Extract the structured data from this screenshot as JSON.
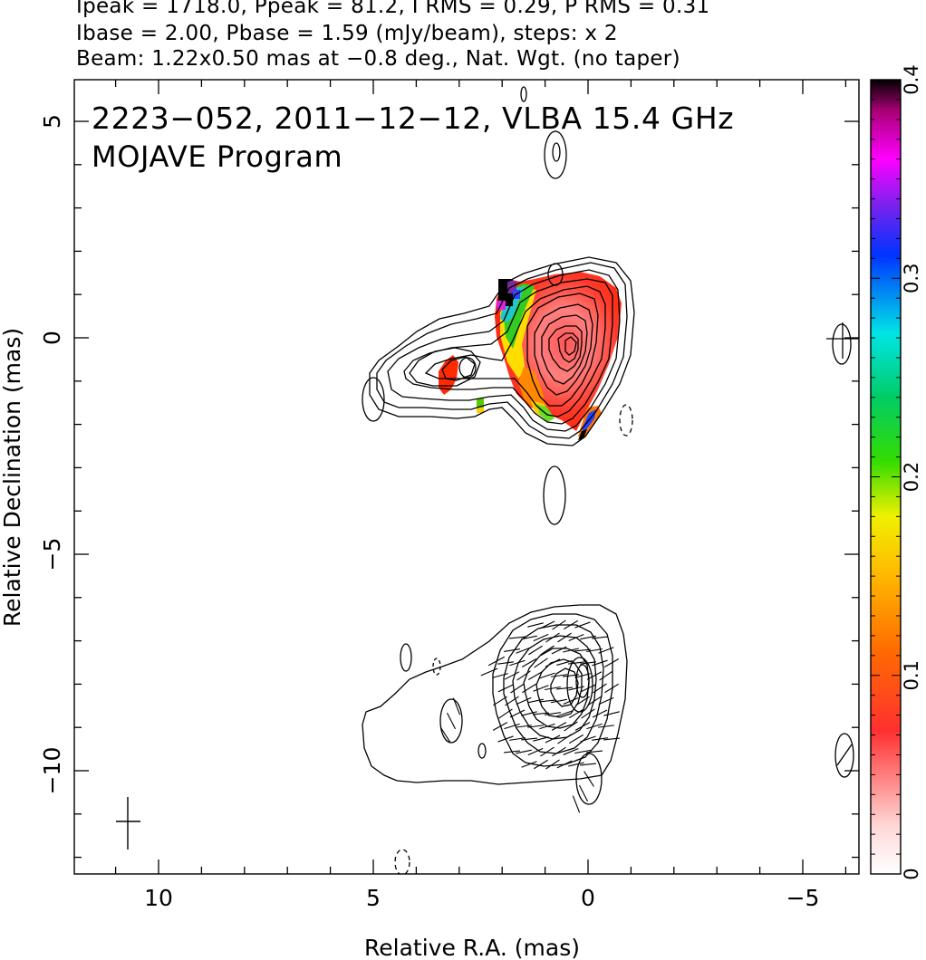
{
  "header": {
    "line1": "Ipeak = 1718.0, Ppeak = 81.2, I RMS = 0.29, P RMS = 0.31",
    "line2": "Ibase = 2.00, Pbase = 1.59 (mJy/beam), steps: x 2",
    "line3": "Beam: 1.22x0.50 mas at −0.8 deg., Nat. Wgt. (no taper)"
  },
  "chart_data": {
    "type": "heatmap",
    "title": "2223−052, 2011−12−12, VLBA 15.4 GHz",
    "subtitle": "MOJAVE Program",
    "xlabel": "Relative R.A. (mas)",
    "ylabel": "Relative Declination (mas)",
    "xlim": [
      12,
      -6.5
    ],
    "ylim": [
      -12.3,
      6
    ],
    "xticks": [
      10,
      5,
      0,
      -5
    ],
    "xtick_labels": [
      "10",
      "5",
      "0",
      "−5"
    ],
    "yticks": [
      5,
      0,
      -5,
      -10
    ],
    "ytick_labels": [
      "5",
      "0",
      "−5",
      "−10"
    ],
    "colorbar": {
      "range": [
        0,
        0.4
      ],
      "ticks": [
        0,
        0.1,
        0.2,
        0.3,
        0.4
      ],
      "tick_labels": [
        "0",
        "0.1",
        "0.2",
        "0.3",
        "0.4"
      ]
    },
    "grid": false,
    "core_component": {
      "ra": -0.2,
      "dec": -0.3
    },
    "jet_components": [
      {
        "ra": 2.9,
        "dec": -0.7
      },
      {
        "ra": 5.0,
        "dec": -1.3
      },
      {
        "ra": 0.7,
        "dec": 4.3
      },
      {
        "ra": 0.7,
        "dec": -3.7
      },
      {
        "ra": -5.9,
        "dec": 0.1
      },
      {
        "ra": -5.9,
        "dec": -9.6
      }
    ],
    "lower_panel_center": {
      "ra": 0.1,
      "dec": -8.0
    },
    "beam": {
      "major": 1.22,
      "minor": 0.5,
      "pa_deg": -0.8
    }
  }
}
